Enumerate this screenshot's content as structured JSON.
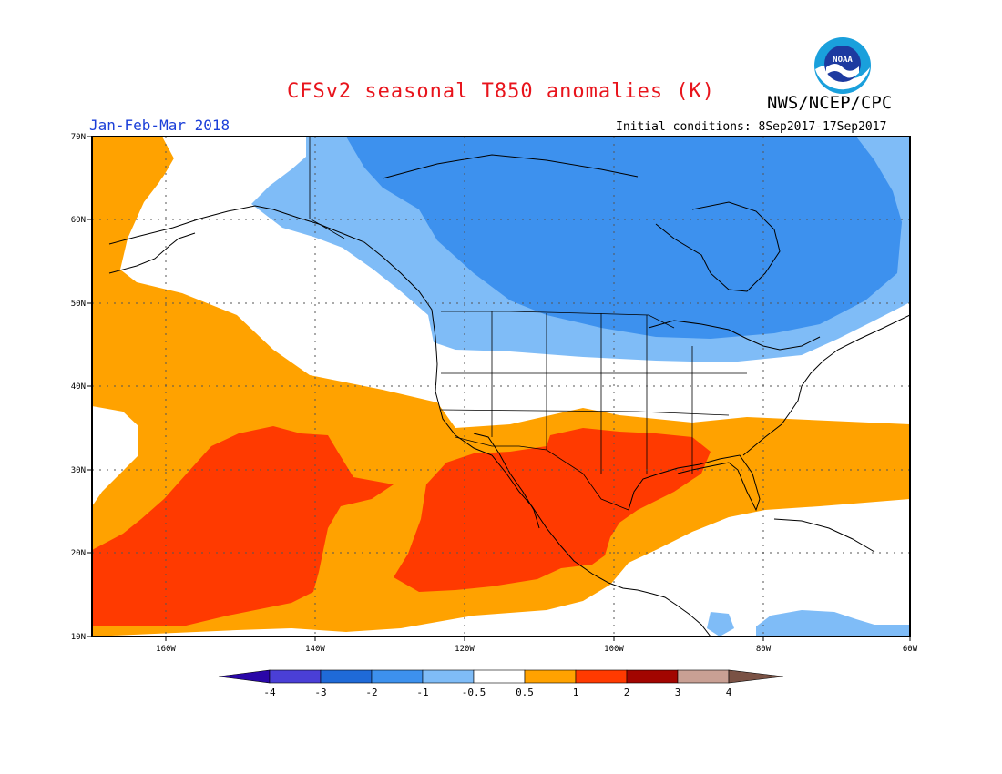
{
  "title": "CFSv2 seasonal T850 anomalies (K)",
  "organization": "NWS/NCEP/CPC",
  "logo_text": "NOAA",
  "period": "Jan-Feb-Mar 2018",
  "initial_conditions": "Initial conditions: 8Sep2017-17Sep2017",
  "map": {
    "lon_labels": [
      "160W",
      "140W",
      "120W",
      "100W",
      "80W",
      "60W"
    ],
    "lat_labels": [
      "70N",
      "60N",
      "50N",
      "40N",
      "30N",
      "20N",
      "10N"
    ]
  },
  "colorbar": {
    "labels": [
      "-4",
      "-3",
      "-2",
      "-1",
      "-0.5",
      "0.5",
      "1",
      "2",
      "3",
      "4"
    ],
    "colors": [
      "#2a07a8",
      "#4a3fd6",
      "#1f6ad8",
      "#3d91ee",
      "#7fbcf7",
      "#ffffff",
      "#ffa200",
      "#ff3a00",
      "#a20500",
      "#c9a094",
      "#7a5245"
    ]
  },
  "colors": {
    "ocean_warm": "#ffa200",
    "hot": "#ff3a00",
    "cold_light": "#7fbcf7",
    "cold": "#3d91ee",
    "title": "#e8141c",
    "period": "#1b3fd8"
  }
}
